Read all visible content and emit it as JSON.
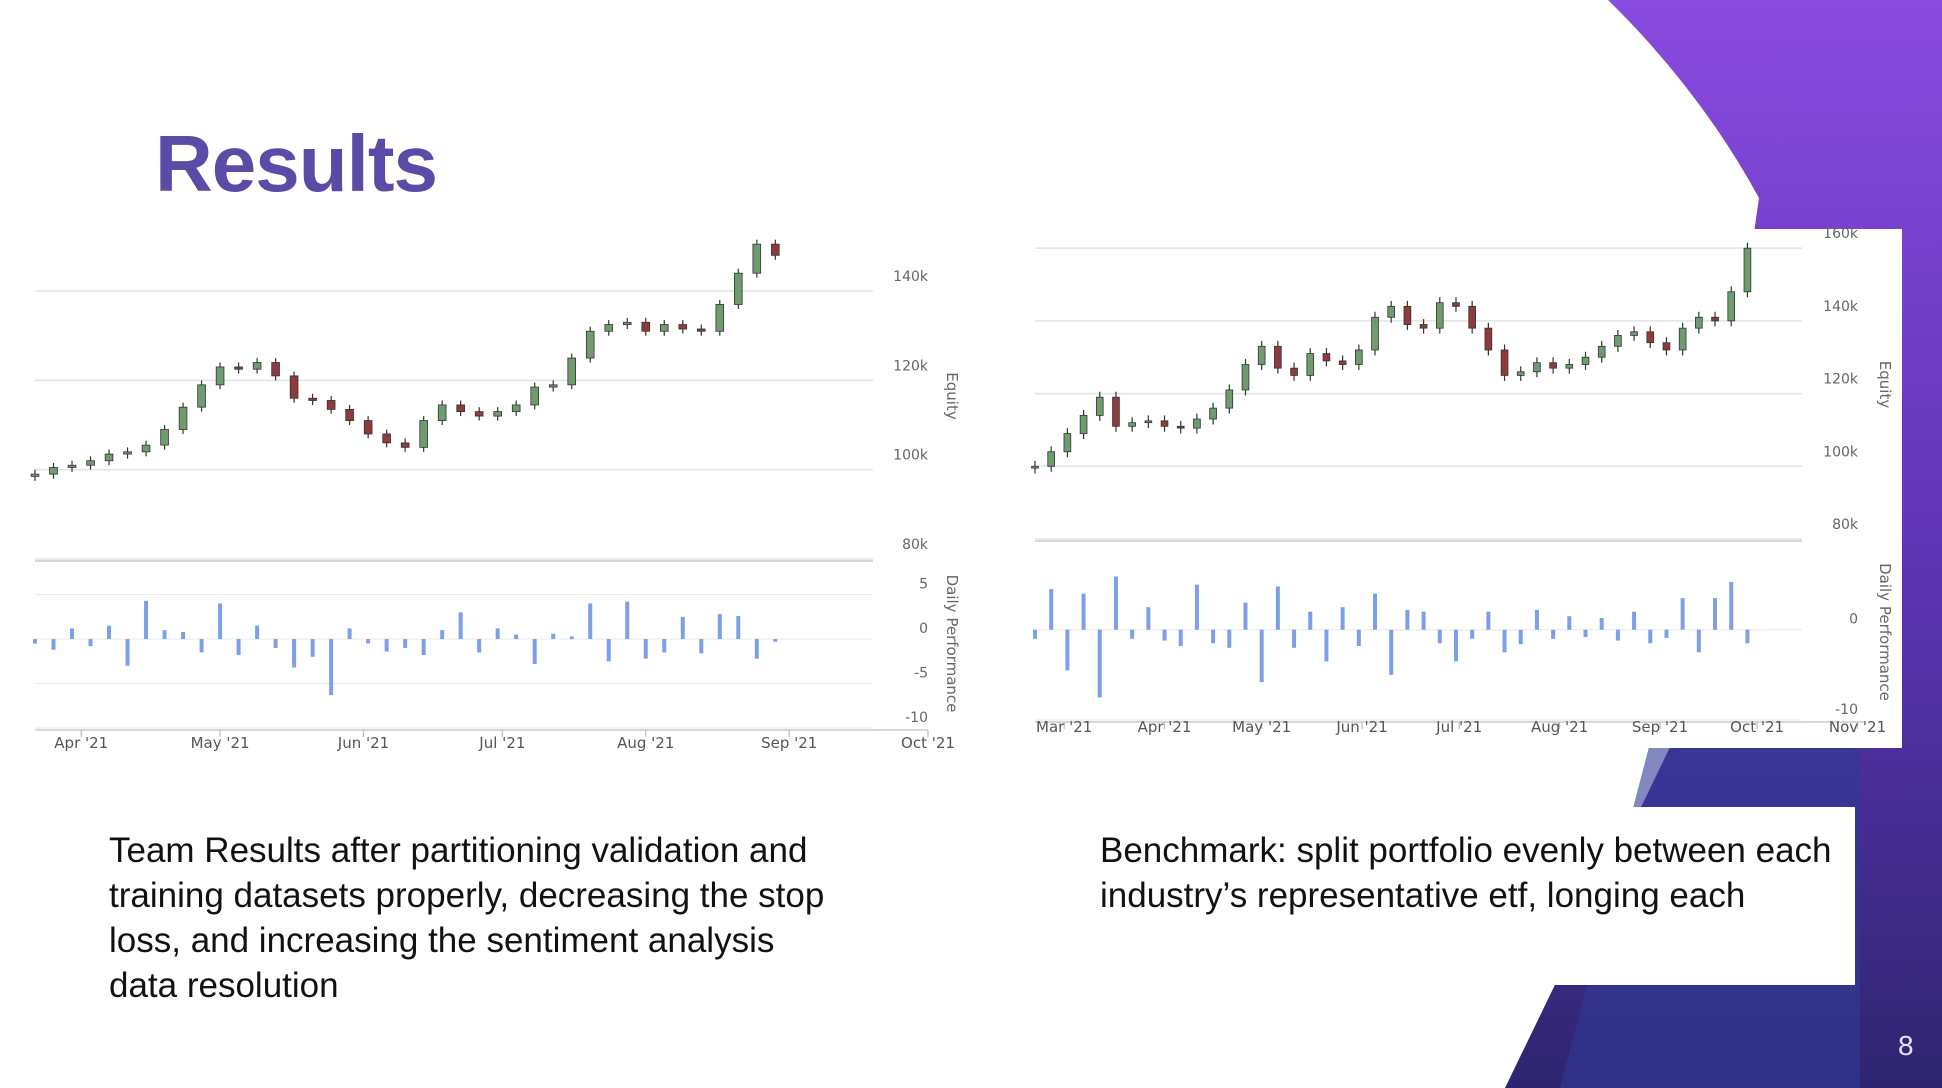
{
  "title": "Results",
  "captions": [
    "Team Results after partitioning validation and training datasets properly, decreasing the stop loss, and increasing the sentiment analysis data resolution",
    "Benchmark: split portfolio evenly between each industry’s representative etf, longing each"
  ],
  "page_number": "8",
  "chart_data": [
    {
      "type": "candlestick",
      "y_label": "Equity",
      "x": [
        0,
        4,
        8,
        12,
        16,
        20,
        24,
        28,
        32,
        36,
        40,
        44,
        48,
        52,
        56,
        60,
        64,
        68,
        72,
        76,
        80,
        84,
        88,
        92,
        96,
        100,
        104,
        108,
        112,
        116,
        120,
        124,
        128,
        132,
        136,
        140,
        144,
        148,
        152,
        156,
        160
      ],
      "open": [
        98500,
        99000,
        100500,
        101000,
        102000,
        103500,
        104000,
        105500,
        109000,
        114000,
        119000,
        123000,
        122500,
        124000,
        121000,
        116000,
        115500,
        113500,
        111000,
        108000,
        106000,
        105000,
        111000,
        114500,
        113000,
        112000,
        113000,
        114500,
        118500,
        119000,
        125000,
        131000,
        132500,
        133000,
        131000,
        132500,
        131500,
        131000,
        137000,
        144000,
        150500
      ],
      "high": [
        100000,
        101500,
        102000,
        103000,
        104500,
        105000,
        106500,
        110000,
        115000,
        120000,
        124000,
        124000,
        125000,
        125000,
        122000,
        117000,
        116500,
        114500,
        112000,
        109000,
        107000,
        112000,
        115500,
        115500,
        114000,
        114000,
        115500,
        119500,
        120000,
        126000,
        132000,
        133500,
        134000,
        134000,
        133500,
        133500,
        132500,
        138000,
        145000,
        151500,
        151500
      ],
      "low": [
        97500,
        98000,
        99500,
        100000,
        101000,
        102500,
        103000,
        104500,
        108000,
        113000,
        118000,
        121500,
        121500,
        120000,
        115000,
        114500,
        112500,
        110000,
        107000,
        105000,
        104000,
        104000,
        110000,
        112000,
        111000,
        111000,
        112000,
        113500,
        117500,
        118000,
        124000,
        130000,
        131500,
        130000,
        130000,
        130500,
        130000,
        130000,
        136000,
        143000,
        147000
      ],
      "close": [
        99000,
        100500,
        101000,
        102000,
        103500,
        104000,
        105500,
        109000,
        114000,
        119000,
        123000,
        122500,
        124000,
        121000,
        116000,
        115500,
        113500,
        111000,
        108000,
        106000,
        105000,
        111000,
        114500,
        113000,
        112000,
        113000,
        114500,
        118500,
        119000,
        125000,
        131000,
        132500,
        133000,
        131000,
        132500,
        131500,
        131000,
        137000,
        144000,
        150500,
        148000
      ],
      "up_color": "#6f9c6f",
      "down_color": "#8e3b3b",
      "xlim": [
        0,
        193
      ],
      "xticks": [
        {
          "value": 10,
          "label": "Apr '21"
        },
        {
          "value": 40,
          "label": "May '21"
        },
        {
          "value": 71,
          "label": "Jun '21"
        },
        {
          "value": 101,
          "label": "Jul '21"
        },
        {
          "value": 132,
          "label": "Aug '21"
        },
        {
          "value": 163,
          "label": "Sep '21"
        },
        {
          "value": 193,
          "label": "Oct '21"
        }
      ],
      "ylim": [
        80000,
        153000
      ],
      "yticks": [
        {
          "value": 80000,
          "label": "80k"
        },
        {
          "value": 100000,
          "label": "100k"
        },
        {
          "value": 120000,
          "label": "120k"
        },
        {
          "value": 140000,
          "label": "140k"
        }
      ],
      "grid": true,
      "lower": {
        "type": "bar",
        "y_label": "Daily Performance",
        "color": "#7b9fe8",
        "values": [
          -0.5,
          -1.2,
          1.2,
          -0.8,
          1.5,
          -3.0,
          4.3,
          1.0,
          0.8,
          -1.5,
          4.0,
          -1.8,
          1.5,
          -1.0,
          -3.2,
          -2.0,
          -6.3,
          1.2,
          -0.5,
          -1.4,
          -1.0,
          -1.8,
          1.0,
          3.0,
          -1.5,
          1.2,
          0.5,
          -2.8,
          0.6,
          0.3,
          4.0,
          -2.5,
          4.2,
          -2.2,
          -1.5,
          2.5,
          -1.6,
          2.8,
          2.6,
          -2.2,
          -0.3
        ],
        "ylim": [
          -10,
          9
        ],
        "yticks": [
          -10,
          -5,
          0,
          5
        ]
      }
    },
    {
      "type": "candlestick",
      "y_label": "Equity",
      "x": [
        0,
        5,
        10,
        15,
        20,
        25,
        30,
        35,
        40,
        45,
        50,
        55,
        60,
        65,
        70,
        75,
        80,
        85,
        90,
        95,
        100,
        105,
        110,
        115,
        120,
        125,
        130,
        135,
        140,
        145,
        150,
        155,
        160,
        165,
        170,
        175,
        180,
        185,
        190,
        195,
        200,
        205,
        210,
        215,
        220
      ],
      "open": [
        99500,
        100000,
        104000,
        109000,
        114000,
        119000,
        111000,
        112000,
        112500,
        111000,
        110500,
        113000,
        116000,
        121000,
        128000,
        133000,
        127000,
        125000,
        131000,
        129000,
        128000,
        132000,
        141000,
        144000,
        139000,
        138000,
        145000,
        144000,
        138000,
        132000,
        125000,
        126000,
        128500,
        127000,
        128000,
        130000,
        133000,
        136000,
        137000,
        134000,
        132000,
        138000,
        141000,
        140000,
        148000
      ],
      "high": [
        101500,
        105500,
        110500,
        115500,
        120500,
        120500,
        113500,
        114000,
        114000,
        112500,
        114500,
        117500,
        122500,
        129500,
        134500,
        134500,
        128500,
        132500,
        132500,
        130500,
        133500,
        142500,
        145500,
        145500,
        140500,
        146500,
        146500,
        145500,
        139500,
        133500,
        127500,
        130000,
        130000,
        129500,
        131500,
        134500,
        137500,
        138500,
        138500,
        135500,
        139500,
        142500,
        142500,
        149500,
        161500
      ],
      "low": [
        98000,
        98500,
        102500,
        107500,
        112500,
        109500,
        109500,
        110500,
        109500,
        109000,
        109000,
        111500,
        114500,
        119500,
        126500,
        125500,
        123500,
        123500,
        127500,
        126500,
        126500,
        130500,
        139500,
        137500,
        136500,
        136500,
        142500,
        136500,
        130500,
        123500,
        123500,
        124500,
        125500,
        125500,
        126500,
        128500,
        131500,
        134500,
        132500,
        130500,
        130500,
        136500,
        138500,
        138500,
        146500
      ],
      "close": [
        100000,
        104000,
        109000,
        114000,
        119000,
        111000,
        112000,
        112500,
        111000,
        110500,
        113000,
        116000,
        121000,
        128000,
        133000,
        127000,
        125000,
        131000,
        129000,
        128000,
        132000,
        141000,
        144000,
        139000,
        138000,
        145000,
        144000,
        138000,
        132000,
        125000,
        126000,
        128500,
        127000,
        128000,
        130000,
        133000,
        136000,
        137000,
        134000,
        132000,
        138000,
        141000,
        140000,
        148000,
        160000
      ],
      "up_color": "#6f9c6f",
      "down_color": "#8e3b3b",
      "xlim": [
        0,
        256
      ],
      "xticks": [
        {
          "value": 9,
          "label": "Mar '21"
        },
        {
          "value": 40,
          "label": "Apr '21"
        },
        {
          "value": 70,
          "label": "May '21"
        },
        {
          "value": 101,
          "label": "Jun '21"
        },
        {
          "value": 131,
          "label": "Jul '21"
        },
        {
          "value": 162,
          "label": "Aug '21"
        },
        {
          "value": 193,
          "label": "Sep '21"
        },
        {
          "value": 223,
          "label": "Oct '21"
        },
        {
          "value": 254,
          "label": "Nov '21"
        }
      ],
      "ylim": [
        80000,
        165000
      ],
      "yticks": [
        {
          "value": 80000,
          "label": "80k"
        },
        {
          "value": 100000,
          "label": "100k"
        },
        {
          "value": 120000,
          "label": "120k"
        },
        {
          "value": 140000,
          "label": "140k"
        },
        {
          "value": 160000,
          "label": "160k"
        }
      ],
      "grid": true,
      "lower": {
        "type": "bar",
        "y_label": "Daily Performance",
        "color": "#7b9fe8",
        "values": [
          -1.0,
          4.5,
          -4.5,
          4.0,
          -7.5,
          5.9,
          -1.0,
          2.5,
          -1.2,
          -1.8,
          5.0,
          -1.5,
          -2.0,
          3.0,
          -5.8,
          4.8,
          -2.0,
          2.0,
          -3.5,
          2.5,
          -1.8,
          4.0,
          -5.0,
          2.2,
          2.0,
          -1.5,
          -3.5,
          -1.0,
          2.0,
          -2.5,
          -1.6,
          2.2,
          -1.0,
          1.5,
          -0.8,
          1.3,
          -1.2,
          2.0,
          -1.5,
          -0.9,
          3.5,
          -2.5,
          3.5,
          5.3,
          -1.5
        ],
        "ylim": [
          -10,
          9.5
        ],
        "yticks": [
          -10,
          0
        ]
      }
    }
  ]
}
